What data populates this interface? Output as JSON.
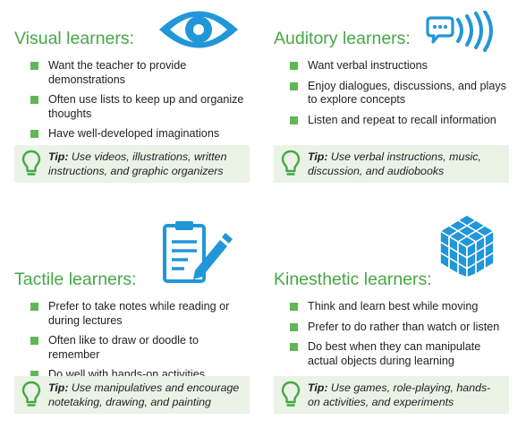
{
  "panels": {
    "visual": {
      "title": "Visual learners:",
      "icon": "eye-icon",
      "items": [
        "Want the teacher to provide demonstrations",
        "Often use lists to keep up and organize thoughts",
        "Have well-developed imaginations"
      ],
      "tip_label": "Tip:",
      "tip_text": " Use videos, illustrations, written instructions, and graphic organizers"
    },
    "auditory": {
      "title": "Auditory learners:",
      "icon": "speech-waves-icon",
      "items": [
        "Want verbal instructions",
        "Enjoy dialogues, discussions, and plays to explore concepts",
        "Listen and repeat to recall information"
      ],
      "tip_label": "Tip:",
      "tip_text": " Use verbal instructions, music, discussion, and audiobooks"
    },
    "tactile": {
      "title": "Tactile learners:",
      "icon": "clipboard-pencil-icon",
      "items": [
        "Prefer to take notes while reading or during lectures",
        "Often like to draw or doodle to remember",
        "Do well with hands-on activities"
      ],
      "tip_label": "Tip:",
      "tip_text": " Use manipulatives and encourage notetaking, drawing, and painting"
    },
    "kinesthetic": {
      "title": "Kinesthetic learners:",
      "icon": "cube-puzzle-icon",
      "items": [
        "Think and learn best while moving",
        "Prefer to do rather than watch or listen",
        "Do best when they can manipulate actual objects during learning"
      ],
      "tip_label": "Tip:",
      "tip_text": " Use games, role-playing, hands-on activities, and experiments"
    }
  },
  "colors": {
    "accent_green": "#45a845",
    "bullet_green": "#61b758",
    "tip_background": "#eaf3e6",
    "icon_blue": "#2196d8"
  }
}
